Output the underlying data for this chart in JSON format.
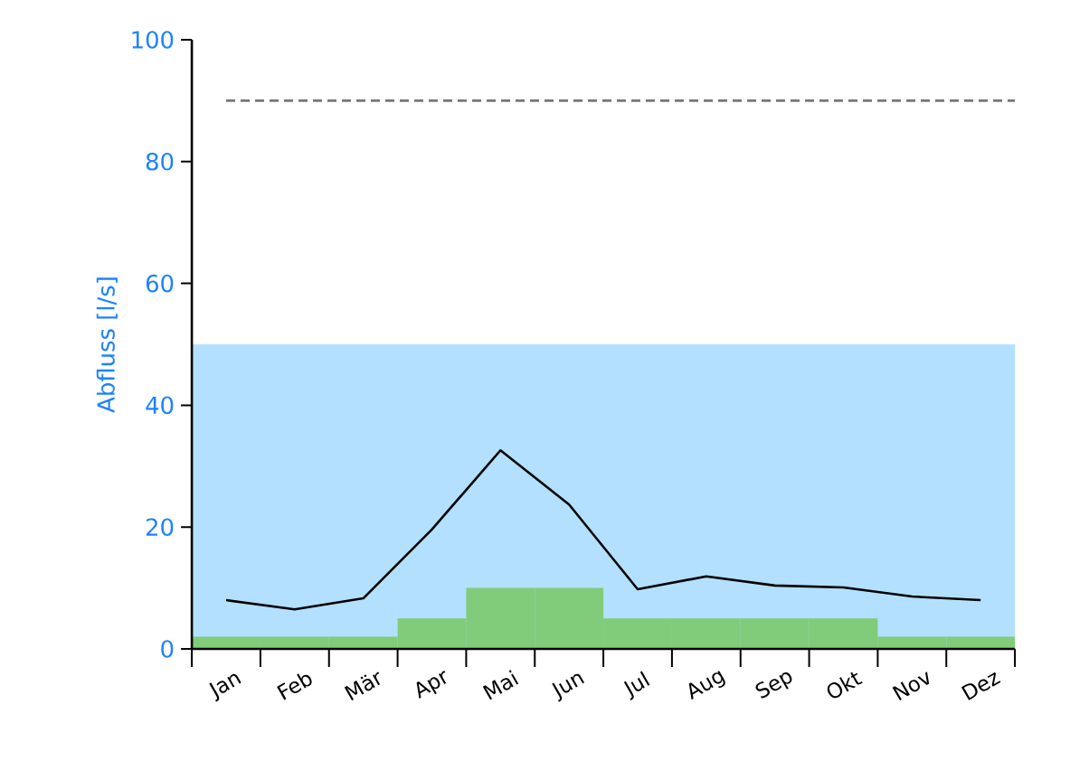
{
  "chart_data": {
    "type": "line",
    "ylabel": "Abfluss [l/s]",
    "categories": [
      "Jan",
      "Feb",
      "Mär",
      "Apr",
      "Mai",
      "Jun",
      "Jul",
      "Aug",
      "Sep",
      "Okt",
      "Nov",
      "Dez"
    ],
    "ylim": [
      0,
      100
    ],
    "yticks": [
      0,
      20,
      40,
      60,
      80,
      100
    ],
    "series": [
      {
        "type": "bar",
        "color": "#80cc7a",
        "values": [
          2,
          2,
          2,
          5,
          10,
          10,
          5,
          5,
          5,
          5,
          2,
          2
        ]
      },
      {
        "color": "#000000",
        "values": [
          8,
          6.5,
          8.3,
          19.6,
          32.6,
          23.7,
          9.8,
          11.9,
          10.4,
          10.1,
          8.6,
          8
        ]
      }
    ],
    "bands": [
      {
        "axis": "y",
        "from": 0,
        "to": 50,
        "color": "#b3e0ff"
      }
    ],
    "ref_lines": [
      {
        "axis": "y",
        "value": 90,
        "color": "#777777",
        "line_style": "dashed"
      }
    ]
  }
}
